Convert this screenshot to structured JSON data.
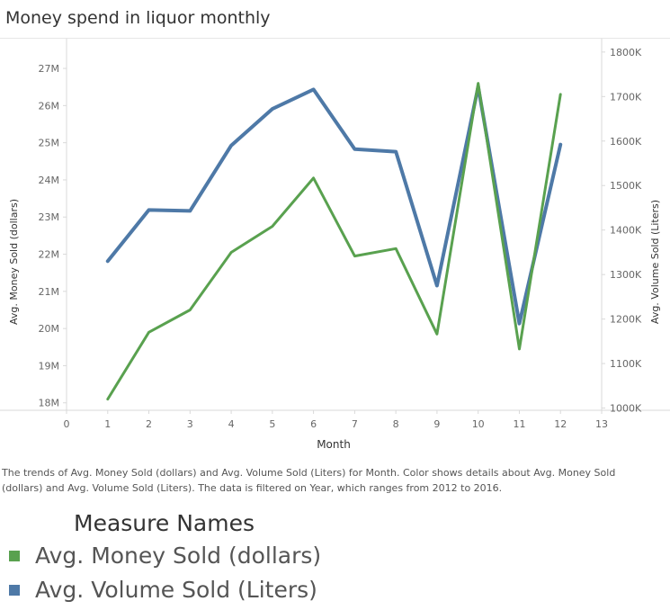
{
  "title": "Money spend in liquor monthly",
  "caption": "The trends of Avg. Money Sold (dollars) and Avg. Volume Sold (Liters) for Month.  Color shows details about Avg. Money Sold (dollars) and Avg. Volume Sold (Liters). The data is filtered on Year, which ranges from 2012 to 2016.",
  "legend": {
    "title": "Measure Names",
    "items": [
      {
        "label": "Avg. Money Sold (dollars)",
        "color": "#59a14f"
      },
      {
        "label": "Avg. Volume Sold (Liters)",
        "color": "#4e79a7"
      }
    ]
  },
  "chart_data": {
    "type": "line",
    "xlabel": "Month",
    "ylabel_left": "Avg. Money Sold (dollars)",
    "ylabel_right": "Avg. Volume Sold (Liters)",
    "x": [
      1,
      2,
      3,
      4,
      5,
      6,
      7,
      8,
      9,
      10,
      11,
      12
    ],
    "xlim": [
      0,
      13
    ],
    "x_ticks": [
      0,
      1,
      2,
      3,
      4,
      5,
      6,
      7,
      8,
      9,
      10,
      11,
      12,
      13
    ],
    "ylim_left": [
      17.8,
      27.8
    ],
    "y_ticks_left": [
      18,
      19,
      20,
      21,
      22,
      23,
      24,
      25,
      26,
      27
    ],
    "y_tick_labels_left": [
      "18M",
      "19M",
      "20M",
      "21M",
      "22M",
      "23M",
      "24M",
      "25M",
      "26M",
      "27M"
    ],
    "ylim_right": [
      995,
      1830
    ],
    "y_ticks_right": [
      1000,
      1100,
      1200,
      1300,
      1400,
      1500,
      1600,
      1700,
      1800
    ],
    "y_tick_labels_right": [
      "1000K",
      "1100K",
      "1200K",
      "1300K",
      "1400K",
      "1500K",
      "1600K",
      "1700K",
      "1800K"
    ],
    "grid": false,
    "legend_position": "bottom-left",
    "series": [
      {
        "name": "Avg. Money Sold (dollars)",
        "axis": "left",
        "unit": "M",
        "color": "#59a14f",
        "values": [
          18.1,
          19.9,
          20.5,
          22.05,
          22.75,
          24.05,
          21.95,
          22.15,
          19.85,
          26.6,
          19.45,
          26.3
        ]
      },
      {
        "name": "Avg. Volume Sold (Liters)",
        "axis": "right",
        "unit": "K",
        "color": "#4e79a7",
        "values": [
          1330,
          1445,
          1443,
          1590,
          1672,
          1716,
          1582,
          1576,
          1275,
          1722,
          1190,
          1592
        ]
      }
    ]
  }
}
